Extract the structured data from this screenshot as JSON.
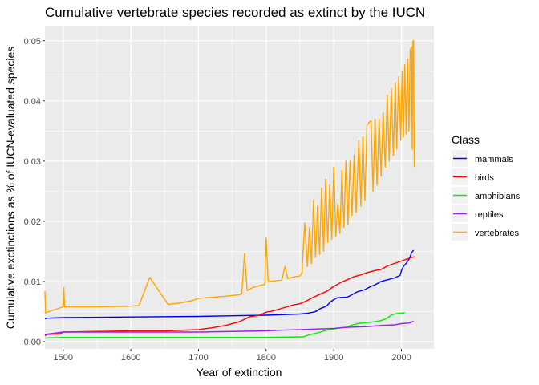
{
  "chart_data": {
    "type": "line",
    "title": "Cumulative vertebrate species recorded as extinct by the IUCN",
    "xlabel": "Year of extinction",
    "ylabel": "Cumulative exctinctions as % of IUCN-evaluated species",
    "xlim": [
      1473,
      2048
    ],
    "ylim": [
      -0.0012,
      0.0525
    ],
    "x_ticks": [
      1500,
      1600,
      1700,
      1800,
      1900,
      2000
    ],
    "y_ticks": [
      0.0,
      0.01,
      0.02,
      0.03,
      0.04,
      0.05
    ],
    "y_tick_labels": [
      "0.00",
      "0.01",
      "0.02",
      "0.03",
      "0.04",
      "0.05"
    ],
    "grid": true,
    "legend": {
      "title": "Class",
      "position": "right"
    },
    "series": [
      {
        "name": "mammals",
        "color": "#0000ff",
        "points": [
          [
            1473,
            0.0038
          ],
          [
            1476,
            0.0039
          ],
          [
            1500,
            0.004
          ],
          [
            1600,
            0.0041
          ],
          [
            1700,
            0.0042
          ],
          [
            1750,
            0.0043
          ],
          [
            1800,
            0.0044
          ],
          [
            1850,
            0.0046
          ],
          [
            1860,
            0.0047
          ],
          [
            1870,
            0.0049
          ],
          [
            1875,
            0.0051
          ],
          [
            1880,
            0.0055
          ],
          [
            1885,
            0.0057
          ],
          [
            1890,
            0.006
          ],
          [
            1895,
            0.0066
          ],
          [
            1900,
            0.007
          ],
          [
            1905,
            0.0073
          ],
          [
            1920,
            0.0074
          ],
          [
            1925,
            0.0077
          ],
          [
            1930,
            0.008
          ],
          [
            1935,
            0.0083
          ],
          [
            1945,
            0.0086
          ],
          [
            1950,
            0.0089
          ],
          [
            1955,
            0.0092
          ],
          [
            1960,
            0.0094
          ],
          [
            1965,
            0.0097
          ],
          [
            1970,
            0.01
          ],
          [
            1980,
            0.0103
          ],
          [
            1990,
            0.0106
          ],
          [
            1998,
            0.011
          ],
          [
            2000,
            0.0118
          ],
          [
            2003,
            0.0125
          ],
          [
            2007,
            0.013
          ],
          [
            2012,
            0.0138
          ],
          [
            2015,
            0.0148
          ],
          [
            2018,
            0.0152
          ]
        ]
      },
      {
        "name": "birds",
        "color": "#ff0000",
        "points": [
          [
            1473,
            0.001
          ],
          [
            1476,
            0.0012
          ],
          [
            1495,
            0.0013
          ],
          [
            1500,
            0.0016
          ],
          [
            1600,
            0.0018
          ],
          [
            1650,
            0.0018
          ],
          [
            1700,
            0.002
          ],
          [
            1720,
            0.0023
          ],
          [
            1740,
            0.0027
          ],
          [
            1760,
            0.0033
          ],
          [
            1775,
            0.0041
          ],
          [
            1790,
            0.0044
          ],
          [
            1800,
            0.0049
          ],
          [
            1810,
            0.0051
          ],
          [
            1825,
            0.0056
          ],
          [
            1840,
            0.0061
          ],
          [
            1850,
            0.0063
          ],
          [
            1860,
            0.0068
          ],
          [
            1870,
            0.0074
          ],
          [
            1880,
            0.0079
          ],
          [
            1890,
            0.0084
          ],
          [
            1900,
            0.0092
          ],
          [
            1910,
            0.0098
          ],
          [
            1920,
            0.0103
          ],
          [
            1930,
            0.0108
          ],
          [
            1940,
            0.0111
          ],
          [
            1950,
            0.0115
          ],
          [
            1960,
            0.0118
          ],
          [
            1970,
            0.012
          ],
          [
            1980,
            0.0126
          ],
          [
            1990,
            0.013
          ],
          [
            2000,
            0.0134
          ],
          [
            2010,
            0.0138
          ],
          [
            2015,
            0.014
          ],
          [
            2020,
            0.0141
          ]
        ]
      },
      {
        "name": "amphibians",
        "color": "#00ee00",
        "points": [
          [
            1473,
            0.0006
          ],
          [
            1500,
            0.0007
          ],
          [
            1600,
            0.0007
          ],
          [
            1700,
            0.0007
          ],
          [
            1800,
            0.0007
          ],
          [
            1855,
            0.0008
          ],
          [
            1860,
            0.001
          ],
          [
            1870,
            0.0013
          ],
          [
            1880,
            0.0016
          ],
          [
            1890,
            0.0019
          ],
          [
            1900,
            0.0021
          ],
          [
            1910,
            0.0023
          ],
          [
            1920,
            0.0024
          ],
          [
            1925,
            0.0027
          ],
          [
            1935,
            0.003
          ],
          [
            1950,
            0.0032
          ],
          [
            1960,
            0.0033
          ],
          [
            1970,
            0.0035
          ],
          [
            1975,
            0.0037
          ],
          [
            1980,
            0.004
          ],
          [
            1985,
            0.0044
          ],
          [
            1990,
            0.0046
          ],
          [
            1995,
            0.0047
          ],
          [
            2005,
            0.0048
          ]
        ]
      },
      {
        "name": "reptiles",
        "color": "#a020f0",
        "points": [
          [
            1473,
            0.0012
          ],
          [
            1500,
            0.0016
          ],
          [
            1600,
            0.0016
          ],
          [
            1700,
            0.0016
          ],
          [
            1800,
            0.0018
          ],
          [
            1820,
            0.0019
          ],
          [
            1850,
            0.002
          ],
          [
            1900,
            0.0022
          ],
          [
            1920,
            0.0024
          ],
          [
            1950,
            0.0025
          ],
          [
            1970,
            0.0027
          ],
          [
            1990,
            0.0028
          ],
          [
            2000,
            0.003
          ],
          [
            2012,
            0.0031
          ],
          [
            2018,
            0.0034
          ]
        ]
      },
      {
        "name": "vertebrates",
        "color": "#ffa500",
        "points": [
          [
            1473,
            0.0084
          ],
          [
            1474,
            0.0048
          ],
          [
            1500,
            0.0058
          ],
          [
            1501,
            0.009
          ],
          [
            1502,
            0.0058
          ],
          [
            1550,
            0.0058
          ],
          [
            1600,
            0.0059
          ],
          [
            1612,
            0.006
          ],
          [
            1628,
            0.0107
          ],
          [
            1655,
            0.0062
          ],
          [
            1670,
            0.0064
          ],
          [
            1690,
            0.0068
          ],
          [
            1700,
            0.0072
          ],
          [
            1735,
            0.0075
          ],
          [
            1760,
            0.0078
          ],
          [
            1764,
            0.008
          ],
          [
            1768,
            0.0146
          ],
          [
            1772,
            0.0085
          ],
          [
            1780,
            0.009
          ],
          [
            1790,
            0.0093
          ],
          [
            1798,
            0.0095
          ],
          [
            1800,
            0.0172
          ],
          [
            1803,
            0.01
          ],
          [
            1823,
            0.0102
          ],
          [
            1828,
            0.0125
          ],
          [
            1832,
            0.0105
          ],
          [
            1843,
            0.0108
          ],
          [
            1850,
            0.0109
          ],
          [
            1853,
            0.0115
          ],
          [
            1857,
            0.0197
          ],
          [
            1861,
            0.0125
          ],
          [
            1864,
            0.019
          ],
          [
            1867,
            0.013
          ],
          [
            1870,
            0.0235
          ],
          [
            1873,
            0.014
          ],
          [
            1876,
            0.0225
          ],
          [
            1879,
            0.0145
          ],
          [
            1882,
            0.0255
          ],
          [
            1885,
            0.015
          ],
          [
            1888,
            0.027
          ],
          [
            1891,
            0.0165
          ],
          [
            1894,
            0.026
          ],
          [
            1897,
            0.017
          ],
          [
            1900,
            0.029
          ],
          [
            1903,
            0.0175
          ],
          [
            1906,
            0.023
          ],
          [
            1909,
            0.018
          ],
          [
            1912,
            0.0285
          ],
          [
            1915,
            0.019
          ],
          [
            1918,
            0.03
          ],
          [
            1921,
            0.0195
          ],
          [
            1924,
            0.03
          ],
          [
            1927,
            0.021
          ],
          [
            1930,
            0.031
          ],
          [
            1933,
            0.0215
          ],
          [
            1937,
            0.0335
          ],
          [
            1940,
            0.0225
          ],
          [
            1943,
            0.034
          ],
          [
            1946,
            0.0235
          ],
          [
            1949,
            0.036
          ],
          [
            1952,
            0.0364
          ],
          [
            1955,
            0.0367
          ],
          [
            1958,
            0.025
          ],
          [
            1961,
            0.037
          ],
          [
            1964,
            0.026
          ],
          [
            1967,
            0.037
          ],
          [
            1970,
            0.0275
          ],
          [
            1973,
            0.038
          ],
          [
            1976,
            0.029
          ],
          [
            1979,
            0.041
          ],
          [
            1982,
            0.03
          ],
          [
            1985,
            0.042
          ],
          [
            1988,
            0.031
          ],
          [
            1991,
            0.043
          ],
          [
            1993,
            0.032
          ],
          [
            1996,
            0.044
          ],
          [
            1999,
            0.0335
          ],
          [
            2001,
            0.045
          ],
          [
            2003,
            0.034
          ],
          [
            2005,
            0.046
          ],
          [
            2007,
            0.0345
          ],
          [
            2009,
            0.047
          ],
          [
            2011,
            0.035
          ],
          [
            2013,
            0.0485
          ],
          [
            2015,
            0.049
          ],
          [
            2016,
            0.032
          ],
          [
            2017,
            0.05
          ],
          [
            2018,
            0.05
          ],
          [
            2019,
            0.029
          ]
        ]
      }
    ]
  }
}
